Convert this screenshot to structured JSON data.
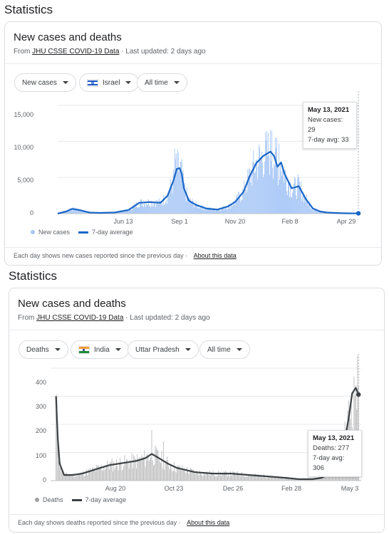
{
  "panels": [
    {
      "section_title": "Statistics",
      "card_title": "New cases and deaths",
      "source_prefix": "From",
      "source_link": "JHU CSSE COVID-19 Data",
      "updated": "· Last updated: 2 days ago",
      "chips": [
        "New cases",
        "Israel",
        "All time"
      ],
      "tooltip": {
        "date": "May 13, 2021",
        "line1": "New cases: 29",
        "line2": "7-day avg: 33"
      },
      "legend": {
        "bars": "New cases",
        "line": "7-day average"
      },
      "footer_text": "Each day shows new cases reported since the previous day",
      "footer_sep": "·",
      "footer_link": "About this data",
      "colors": {
        "bars": "#a7c7f7",
        "line": "#1a66c6"
      }
    },
    {
      "section_title": "Statistics",
      "card_title": "New cases and deaths",
      "source_prefix": "From",
      "source_link": "JHU CSSE COVID-19 Data",
      "updated": "· Last updated: 2 days ago",
      "chips": [
        "Deaths",
        "India",
        "Uttar Pradesh",
        "All time"
      ],
      "tooltip": {
        "date": "May 13, 2021",
        "line1": "Deaths: 277",
        "line2": "7-day avg: 306"
      },
      "legend": {
        "bars": "Deaths",
        "line": "7-day average"
      },
      "footer_text": "Each day shows deaths reported since the previous day",
      "footer_sep": "·",
      "footer_link": "About this data",
      "colors": {
        "bars": "#bdbdbd",
        "line": "#3c4043"
      }
    }
  ],
  "chart_data": [
    {
      "type": "bar",
      "title": "New cases and deaths",
      "ylim": [
        0,
        15000
      ],
      "yticks": [
        "15,000",
        "10,000",
        "5,000",
        "0"
      ],
      "ytick_values": [
        15000,
        10000,
        5000,
        0
      ],
      "xticks": [
        "Jun 13",
        "Sep 1",
        "Nov 20",
        "Feb 8",
        "Apr 29"
      ],
      "xtick_days": [
        90,
        170,
        250,
        330,
        410
      ],
      "series": [
        {
          "name": "New cases",
          "kind": "bar"
        },
        {
          "name": "7-day average",
          "kind": "line",
          "x_day": [
            0,
            12,
            20,
            30,
            45,
            60,
            80,
            100,
            115,
            130,
            145,
            155,
            163,
            168,
            172,
            175,
            178,
            185,
            195,
            210,
            225,
            240,
            250,
            262,
            270,
            280,
            290,
            300,
            305,
            310,
            315,
            320,
            330,
            340,
            350,
            360,
            370,
            380,
            390,
            400,
            410,
            420,
            424
          ],
          "values": [
            0,
            300,
            650,
            500,
            150,
            100,
            150,
            500,
            1500,
            1600,
            1500,
            2500,
            4500,
            6200,
            6300,
            5500,
            3500,
            1800,
            1200,
            700,
            550,
            1000,
            1600,
            3000,
            5000,
            7000,
            8000,
            8600,
            8000,
            6500,
            7100,
            5500,
            3500,
            3800,
            2000,
            700,
            300,
            150,
            100,
            60,
            40,
            33,
            33
          ]
        }
      ]
    },
    {
      "type": "bar",
      "title": "New cases and deaths",
      "ylim": [
        0,
        400
      ],
      "yticks": [
        "400",
        "300",
        "200",
        "100",
        "0"
      ],
      "ytick_values": [
        400,
        300,
        200,
        100,
        0
      ],
      "xticks": [
        "Aug 20",
        "Oct 23",
        "Dec 26",
        "Feb 28",
        "May 3"
      ],
      "xtick_days": [
        155,
        219,
        283,
        347,
        411
      ],
      "series": [
        {
          "name": "Deaths",
          "kind": "bar"
        },
        {
          "name": "7-day average",
          "kind": "line",
          "x_day": [
            76,
            78,
            80,
            85,
            95,
            105,
            115,
            125,
            135,
            145,
            155,
            165,
            175,
            182,
            190,
            200,
            210,
            230,
            250,
            270,
            290,
            310,
            330,
            345,
            360,
            370,
            380,
            390,
            395,
            400,
            404,
            408,
            411
          ],
          "values": [
            300,
            150,
            60,
            20,
            20,
            25,
            35,
            45,
            55,
            60,
            65,
            70,
            80,
            95,
            80,
            60,
            45,
            30,
            25,
            25,
            20,
            15,
            10,
            5,
            5,
            10,
            25,
            70,
            130,
            220,
            310,
            330,
            306
          ]
        }
      ]
    }
  ]
}
